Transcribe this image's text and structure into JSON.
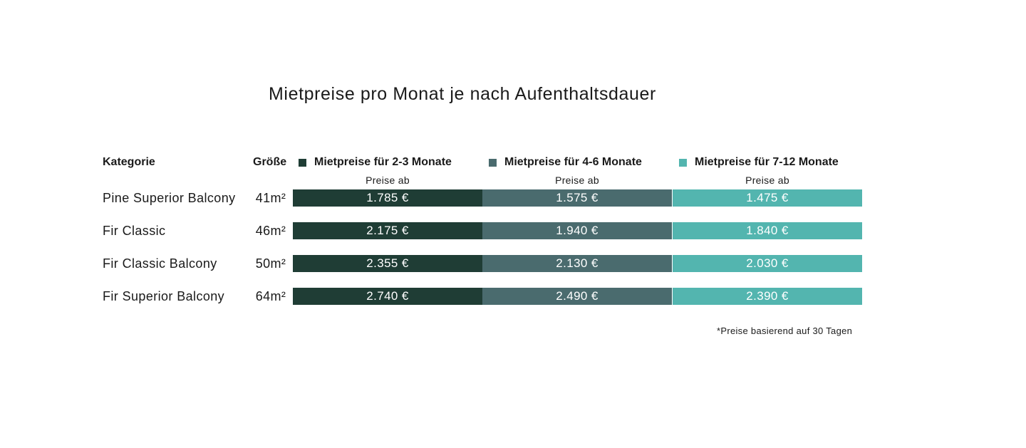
{
  "title": "Mietpreise pro Monat je nach Aufenthaltsdauer",
  "headers": {
    "kategorie": "Kategorie",
    "groesse": "Größe"
  },
  "legend": [
    {
      "label": "Mietpreise für 2-3 Monate",
      "color": "#1f3d35",
      "sub": "Preise ab"
    },
    {
      "label": "Mietpreise für 4-6 Monate",
      "color": "#4a6b6e",
      "sub": "Preise ab"
    },
    {
      "label": "Mietpreise für 7-12 Monate",
      "color": "#53b5af",
      "sub": "Preise ab"
    }
  ],
  "rows": [
    {
      "category": "Pine Superior Balcony",
      "size": "41m²",
      "prices": [
        "1.785 €",
        "1.575 €",
        "1.475 €"
      ]
    },
    {
      "category": "Fir Classic",
      "size": "46m²",
      "prices": [
        "2.175 €",
        "1.940 €",
        "1.840 €"
      ]
    },
    {
      "category": "Fir Classic Balcony",
      "size": "50m²",
      "prices": [
        "2.355 €",
        "2.130 €",
        "2.030 €"
      ]
    },
    {
      "category": "Fir Superior Balcony",
      "size": "64m²",
      "prices": [
        "2.740 €",
        "2.490 €",
        "2.390 €"
      ]
    }
  ],
  "footnote": "*Preise basierend auf 30 Tagen"
}
